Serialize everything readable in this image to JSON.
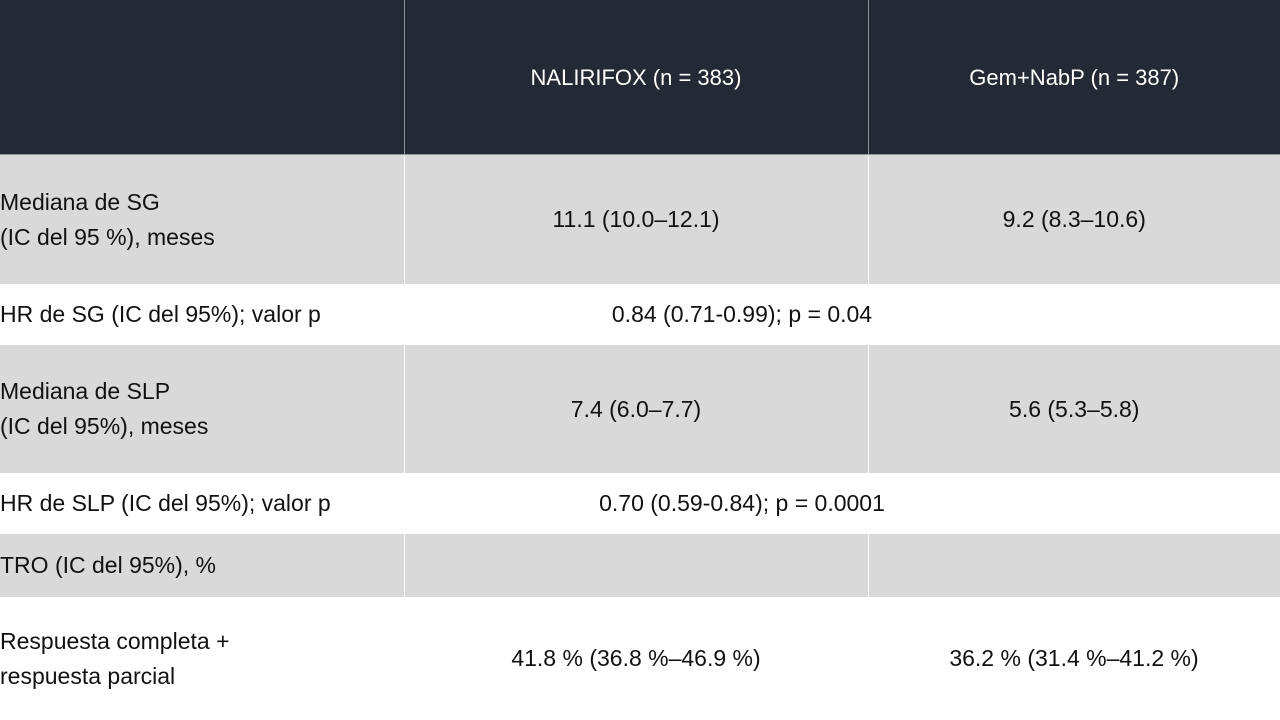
{
  "table": {
    "header": {
      "corner": "",
      "col1": "NALIRIFOX (n = 383)",
      "col2": "Gem+NabP (n = 387)"
    },
    "rows": {
      "os_median": {
        "label_line1": "Mediana de SG",
        "label_line2": "(IC del 95 %), meses",
        "col1": "11.1 (10.0–12.1)",
        "col2": "9.2 (8.3–10.6)"
      },
      "os_hr": {
        "label": "HR de SG (IC del 95%); valor p",
        "value": "0.84 (0.71-0.99); p = 0.04"
      },
      "pfs_median": {
        "label_line1": "Mediana de SLP",
        "label_line2": "(IC del 95%), meses",
        "col1": "7.4 (6.0–7.7)",
        "col2": "5.6 (5.3–5.8)"
      },
      "pfs_hr": {
        "label": "HR de SLP (IC del 95%); valor p",
        "value": "0.70 (0.59-0.84); p = 0.0001"
      },
      "orr": {
        "label": "TRO (IC del 95%), %",
        "col1": "",
        "col2": ""
      },
      "response": {
        "label_line1": "Respuesta completa +",
        "label_line2": "respuesta parcial",
        "col1": "41.8 % (36.8 %–46.9 %)",
        "col2": "36.2 % (31.4 %–41.2 %)"
      }
    }
  },
  "colors": {
    "header_bg": "#232a36",
    "shaded_row_bg": "#d9d9d9",
    "plain_row_bg": "#ffffff"
  }
}
